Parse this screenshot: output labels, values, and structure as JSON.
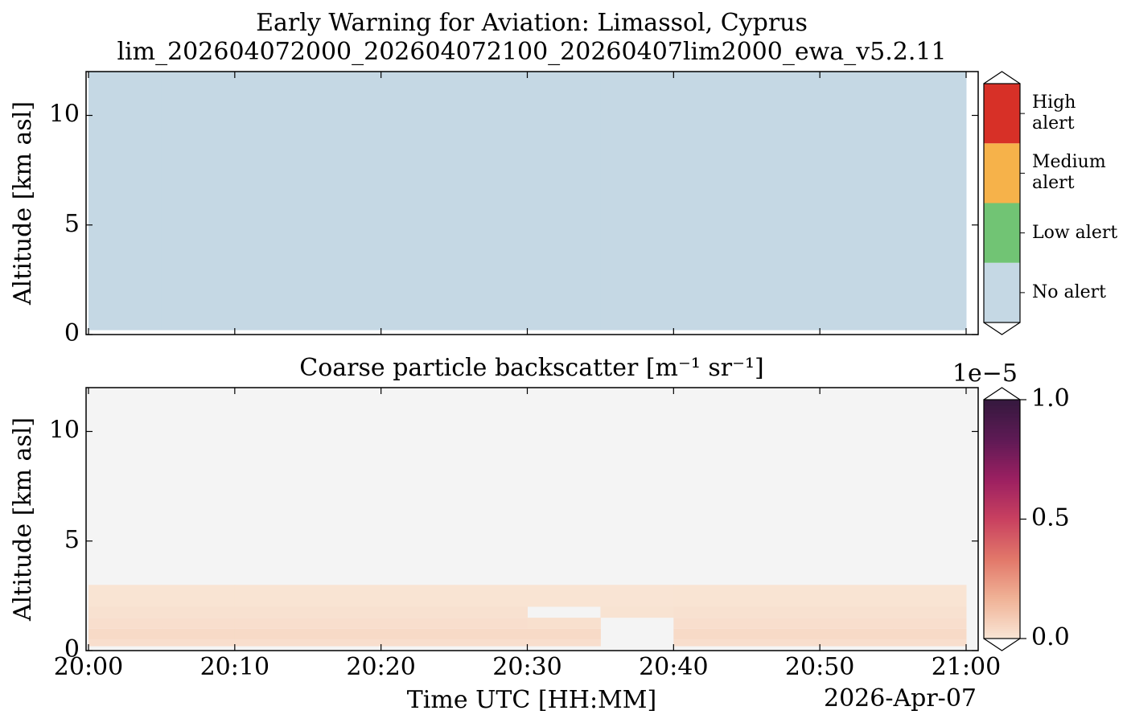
{
  "chart_data": [
    {
      "type": "heatmap",
      "title": "Early Warning for Aviation: Limassol, Cyprus",
      "subtitle": "lim_202604072000_202604072100_20260407lim2000_ewa_v5.2.11",
      "y_label": "Altitude [km asl]",
      "x": [
        "20:00",
        "20:05",
        "20:10",
        "20:15",
        "20:20",
        "20:25",
        "20:30",
        "20:35",
        "20:40",
        "20:45",
        "20:50",
        "20:55",
        "21:00"
      ],
      "y": [
        0.2,
        12
      ],
      "z": [
        [
          0,
          0,
          0,
          0,
          0,
          0,
          0,
          0,
          0,
          0,
          0,
          0
        ]
      ],
      "ylim": [
        0,
        12
      ],
      "yticks": [
        0,
        5,
        10
      ],
      "xticks": [
        "20:00",
        "20:10",
        "20:20",
        "20:30",
        "20:40",
        "20:50",
        "21:00"
      ],
      "colorbar": {
        "categories": [
          "No alert",
          "Low alert",
          "Medium alert",
          "High alert"
        ],
        "colors": [
          "#c5d8e4",
          "#71c474",
          "#f6b24a",
          "#d73027"
        ]
      }
    },
    {
      "type": "heatmap",
      "title": "Coarse particle backscatter [m⁻¹ sr⁻¹]",
      "y_label": "Altitude [km asl]",
      "x_label": "Time UTC [HH:MM]",
      "annotation": "2026-Apr-07",
      "x": [
        "20:00",
        "20:05",
        "20:10",
        "20:15",
        "20:20",
        "20:25",
        "20:30",
        "20:35",
        "20:40",
        "20:45",
        "20:50",
        "20:55",
        "21:00"
      ],
      "y": [
        0.2,
        0.5,
        1,
        1.5,
        2,
        3
      ],
      "z": [
        [
          2.5e-07,
          2.5e-07,
          2.5e-07,
          2.5e-07,
          2.5e-07,
          2.5e-07,
          2.5e-07,
          null,
          2.5e-07,
          2.5e-07,
          2.5e-07,
          2.5e-07
        ],
        [
          4e-07,
          4e-07,
          4e-07,
          4e-07,
          4e-07,
          4e-07,
          4e-07,
          null,
          4e-07,
          4e-07,
          4e-07,
          4e-07
        ],
        [
          2.5e-07,
          2.5e-07,
          2.5e-07,
          2.5e-07,
          2.5e-07,
          2.5e-07,
          2e-07,
          null,
          2.5e-07,
          2.5e-07,
          2.5e-07,
          2.5e-07
        ],
        [
          1.5e-07,
          1.5e-07,
          1.5e-07,
          1.5e-07,
          1.5e-07,
          1.5e-07,
          null,
          1e-07,
          1.5e-07,
          1.5e-07,
          1.5e-07,
          1.5e-07
        ],
        [
          8e-08,
          8e-08,
          8e-08,
          8e-08,
          8e-08,
          8e-08,
          8e-08,
          5e-08,
          8e-08,
          8e-08,
          8e-08,
          8e-08
        ]
      ],
      "ylim": [
        0,
        12
      ],
      "yticks": [
        0,
        5,
        10
      ],
      "xticks": [
        "20:00",
        "20:10",
        "20:20",
        "20:30",
        "20:40",
        "20:50",
        "21:00"
      ],
      "missing_color": "#f4f4f4",
      "colorbar": {
        "lim": [
          0,
          1e-05
        ],
        "ticks": [
          {
            "value": 0,
            "label": "0.0"
          },
          {
            "value": 5e-06,
            "label": "0.5"
          },
          {
            "value": 1e-05,
            "label": "1.0"
          }
        ],
        "offset_label": "1e−5",
        "colors": [
          "#f9e6d6",
          "#f0b397",
          "#e2786a",
          "#c94160",
          "#9c2061",
          "#5e1a55",
          "#35193e"
        ]
      }
    }
  ]
}
